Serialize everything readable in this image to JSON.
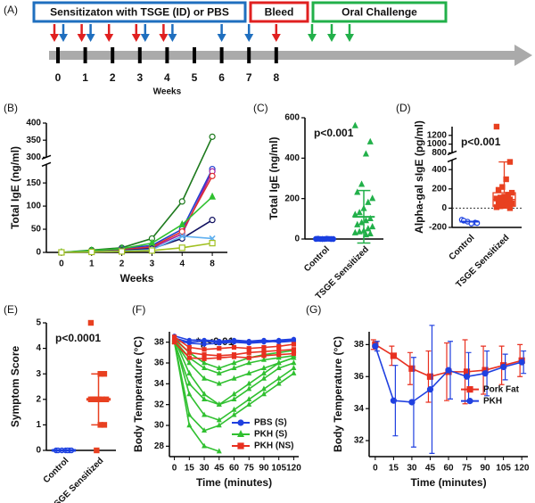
{
  "timeline": {
    "label": "(A)",
    "phases": [
      {
        "label": "Sensitizaton with TSGE (ID) or PBS",
        "color": "#1f6fbf"
      },
      {
        "label": "Bleed",
        "color": "#e02020"
      },
      {
        "label": "Oral Challenge",
        "color": "#22b04a"
      }
    ],
    "weeks": [
      "0",
      "1",
      "2",
      "3",
      "4",
      "5",
      "6",
      "7",
      "8"
    ],
    "axis_label": "Weeks"
  },
  "chart_data": [
    {
      "type": "line",
      "panel": "(B)",
      "ylabel": "Total IgE (ng/ml)",
      "xlabel": "Weeks",
      "categories": [
        "0",
        "1",
        "2",
        "3",
        "4",
        "8"
      ],
      "ylim": [
        0,
        400
      ],
      "axis_break": [
        190,
        300
      ],
      "yticks": [
        0,
        50,
        100,
        150,
        300,
        350,
        400
      ],
      "series": [
        {
          "color": "#1e7a1e",
          "marker": "circle",
          "values": [
            0,
            5,
            10,
            30,
            110,
            360
          ]
        },
        {
          "color": "#2040d0",
          "marker": "circle",
          "values": [
            0,
            3,
            8,
            15,
            50,
            180
          ]
        },
        {
          "color": "#a020a0",
          "marker": "circle",
          "values": [
            0,
            2,
            5,
            10,
            40,
            175
          ]
        },
        {
          "color": "#e03030",
          "marker": "circle",
          "values": [
            0,
            2,
            6,
            12,
            45,
            165
          ]
        },
        {
          "color": "#30c030",
          "marker": "triangle",
          "values": [
            0,
            4,
            8,
            20,
            60,
            120
          ]
        },
        {
          "color": "#101060",
          "marker": "circle",
          "values": [
            0,
            1,
            4,
            8,
            30,
            70
          ]
        },
        {
          "color": "#60b0f0",
          "marker": "x",
          "values": [
            0,
            1,
            3,
            6,
            35,
            30
          ]
        },
        {
          "color": "#a0c020",
          "marker": "square",
          "values": [
            0,
            1,
            2,
            4,
            10,
            20
          ]
        }
      ]
    },
    {
      "type": "strip",
      "panel": "(C)",
      "ylabel": "Total IgE (ng/ml)",
      "annotation": "p<0.001",
      "categories": [
        "Control",
        "TSGE Sensitized"
      ],
      "ylim": [
        0,
        600
      ],
      "yticks": [
        0,
        200,
        400,
        600
      ],
      "colors": [
        "#1a3fe0",
        "#22b04a"
      ],
      "markers": [
        "circle",
        "triangle"
      ],
      "points": [
        [
          0,
          0,
          1,
          0,
          2,
          0,
          1,
          0,
          0,
          1,
          0,
          2,
          0,
          1,
          0
        ],
        [
          560,
          480,
          420,
          270,
          230,
          200,
          180,
          150,
          130,
          120,
          100,
          90,
          80,
          70,
          60,
          50,
          40,
          35,
          30,
          25,
          20
        ]
      ],
      "means": [
        0,
        110
      ],
      "sd": [
        1,
        130
      ]
    },
    {
      "type": "strip",
      "panel": "(D)",
      "ylabel": "Alpha-gal sIgE (pg/ml)",
      "annotation": "p<0.001",
      "categories": [
        "Control",
        "TSGE Sensitized"
      ],
      "ylim": [
        -200,
        1400
      ],
      "axis_break": [
        500,
        800
      ],
      "yticks": [
        -200,
        0,
        200,
        400,
        800,
        1000,
        1200
      ],
      "zero_line": true,
      "colors": [
        "#1a3fe0",
        "#e84020"
      ],
      "markers": [
        "circle",
        "square"
      ],
      "points": [
        [
          -120,
          -150,
          -160,
          -140,
          -130,
          -155
        ],
        [
          1400,
          480,
          300,
          220,
          190,
          160,
          140,
          120,
          110,
          100,
          90,
          80,
          70,
          60,
          50,
          40,
          30,
          20,
          10,
          0
        ]
      ],
      "means": [
        -140,
        null
      ],
      "sd": [
        null,
        null
      ],
      "box": {
        "group": 1,
        "min": 0,
        "q1": 20,
        "median": 90,
        "q3": 160,
        "max": 480
      }
    },
    {
      "type": "strip",
      "panel": "(E)",
      "ylabel": "Symptom Score",
      "annotation": "p<0.0001",
      "categories": [
        "Control",
        "TSGE Sensitized"
      ],
      "ylim": [
        0,
        5
      ],
      "yticks": [
        0,
        1,
        2,
        3,
        4,
        5
      ],
      "colors": [
        "#1a3fe0",
        "#e84020"
      ],
      "markers": [
        "circle",
        "square"
      ],
      "points": [
        [
          0,
          0,
          0,
          0,
          0,
          0,
          0
        ],
        [
          5,
          3,
          3,
          2,
          2,
          2,
          2,
          2,
          2,
          2,
          1,
          1,
          0
        ]
      ],
      "means": [
        0,
        2
      ],
      "sd": [
        0,
        1
      ]
    },
    {
      "type": "line",
      "panel": "(F)",
      "ylabel": "Body Temperature (°C)",
      "xlabel": "Time (minutes)",
      "annotation": "*p<0.01",
      "significance": {
        "label": "*",
        "x": [
          15,
          30
        ]
      },
      "legend": "lower right",
      "x": [
        0,
        15,
        30,
        45,
        60,
        75,
        90,
        105,
        120
      ],
      "xlim": [
        -5,
        125
      ],
      "xticks": [
        0,
        15,
        30,
        45,
        60,
        75,
        90,
        105,
        120
      ],
      "ylim": [
        27,
        39
      ],
      "yticks": [
        28,
        30,
        32,
        34,
        36,
        38
      ],
      "series": [
        {
          "name": "PBS (S)",
          "color": "#2040e0",
          "marker": "circle",
          "lines": [
            [
              38.4,
              38.0,
              38.1,
              38.0,
              38.1,
              38.0,
              38.1,
              38.2,
              38.3
            ],
            [
              38.6,
              38.2,
              38.2,
              38.1,
              38.2,
              38.1,
              38.2,
              38.0,
              38.1
            ],
            [
              38.2,
              37.9,
              37.8,
              37.9,
              38.0,
              37.9,
              38.0,
              38.1,
              38.2
            ]
          ]
        },
        {
          "name": "PKH (S)",
          "color": "#30c030",
          "marker": "triangle",
          "lines": [
            [
              38.3,
              35,
              33,
              32,
              32.5,
              33.5,
              34.5,
              35.5,
              36
            ],
            [
              38.2,
              33,
              31,
              30.5,
              31.5,
              32.5,
              33.5,
              34.5,
              35.5
            ],
            [
              38.0,
              31,
              29.5,
              30,
              31,
              32,
              33,
              34,
              35
            ],
            [
              38,
              30,
              28,
              27.5,
              null,
              null,
              null,
              null,
              null
            ],
            [
              38.2,
              36.5,
              35.5,
              35,
              35.5,
              36,
              36.3,
              36.5,
              36.7
            ],
            [
              38.4,
              37,
              36,
              35.5,
              36,
              36.5,
              36.8,
              37,
              37.2
            ],
            [
              38.0,
              34,
              32.5,
              32,
              33,
              34,
              35,
              36,
              36.5
            ],
            [
              38.1,
              36,
              34.5,
              34,
              34.5,
              35,
              35.5,
              36,
              36.5
            ]
          ]
        },
        {
          "name": "PKH  (NS)",
          "color": "#e83020",
          "marker": "square",
          "lines": [
            [
              38.3,
              37.0,
              36.8,
              36.7,
              36.8,
              37.0,
              37.1,
              37.2,
              37.3
            ],
            [
              38.5,
              37.5,
              37.3,
              37.4,
              37.5,
              37.4,
              37.5,
              37.6,
              37.8
            ],
            [
              38.0,
              36.5,
              36.4,
              36.5,
              36.6,
              36.5,
              36.7,
              36.8,
              36.9
            ]
          ]
        }
      ]
    },
    {
      "type": "line",
      "panel": "(G)",
      "ylabel": "Body Temperature (°C)",
      "xlabel": "Time (minutes)",
      "legend": "right",
      "x": [
        0,
        15,
        30,
        45,
        60,
        75,
        90,
        105,
        120
      ],
      "xlim": [
        -5,
        125
      ],
      "xticks": [
        0,
        15,
        30,
        45,
        60,
        75,
        90,
        105,
        120
      ],
      "ylim": [
        31,
        38.8
      ],
      "yticks": [
        32,
        34,
        36,
        38
      ],
      "series": [
        {
          "name": "Pork Fat",
          "color": "#e83020",
          "marker": "square",
          "values": [
            38,
            37.3,
            36.5,
            36,
            36.3,
            36.3,
            36.4,
            36.7,
            37
          ],
          "errors": [
            0.3,
            0.6,
            1,
            1.6,
            1.8,
            2,
            1.5,
            1.2,
            1
          ]
        },
        {
          "name": "PKH",
          "color": "#2040e0",
          "marker": "circle",
          "values": [
            37.9,
            34.5,
            34.4,
            35.2,
            36.4,
            36,
            36.2,
            36.6,
            36.9
          ],
          "errors": [
            0.3,
            2.2,
            2.8,
            4,
            1.8,
            1.5,
            1.4,
            0.8,
            0.7
          ]
        }
      ]
    }
  ]
}
